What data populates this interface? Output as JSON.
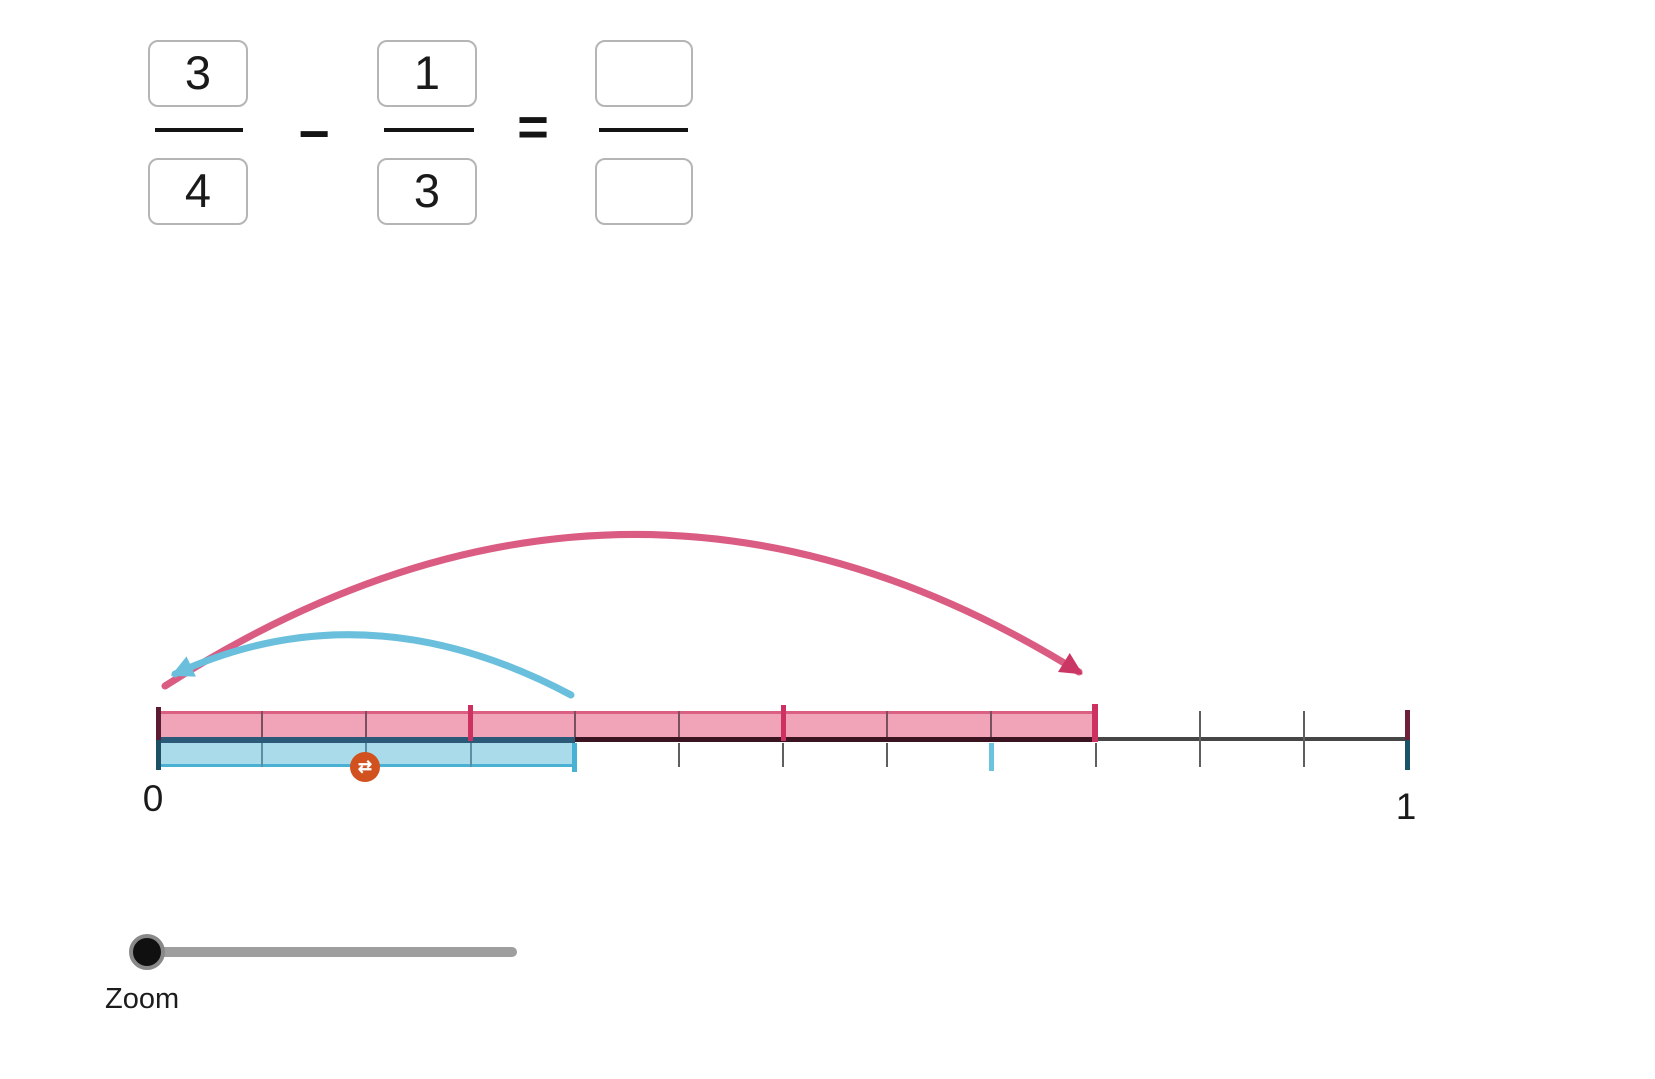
{
  "equation": {
    "minuend": {
      "numerator": "3",
      "denominator": "4"
    },
    "subtrahend": {
      "numerator": "1",
      "denominator": "3"
    },
    "result": {
      "numerator": "",
      "denominator": ""
    },
    "operator": "−",
    "equals": "="
  },
  "number_line": {
    "start_label": "0",
    "end_label": "1",
    "total_divisions": 12,
    "pink_bar_fraction": "3/4",
    "pink_bar_twelfths": 9,
    "blue_bar_fraction": "1/3",
    "blue_bar_twelfths": 4,
    "quarter_tick_indices": [
      3,
      6
    ],
    "pink_division_indices": [
      1,
      2,
      4,
      5,
      7,
      8
    ],
    "blue_division_indices": [
      1,
      2,
      3
    ],
    "below_tick_indices": [
      5,
      6,
      7,
      9
    ],
    "blue_marker_index": 8,
    "cross_tick_indices": [
      10,
      11
    ]
  },
  "swap_button": {
    "icon": "⇄"
  },
  "zoom_slider": {
    "label": "Zoom",
    "value_position": 0
  },
  "colors": {
    "pink_fill": "#F1A3B8",
    "pink_edge": "#DA5F80",
    "crimson_tick": "#CD3161",
    "pink_arc": "#DA5C82",
    "pink_arrowhead": "#CB3765",
    "pink_division": "#7A4F60",
    "blue_fill": "#A9DBEA",
    "blue_edge": "#49B1D3",
    "blue_arc": "#6ABFDC",
    "blue_marker_tick": "#6CC3DE",
    "blue_division": "#5B8FA3",
    "axis_gray": "#464646",
    "axis_navy_segment": "#2B5A78",
    "axis_maroon_segment": "#3A1421",
    "post_maroon": "#5B1C33",
    "post_teal": "#1C5063",
    "gray_tick": "#5F5F5F",
    "orange_button": "#D2521F",
    "slider_track": "#9E9E9E",
    "box_border": "#B5B5B5"
  }
}
